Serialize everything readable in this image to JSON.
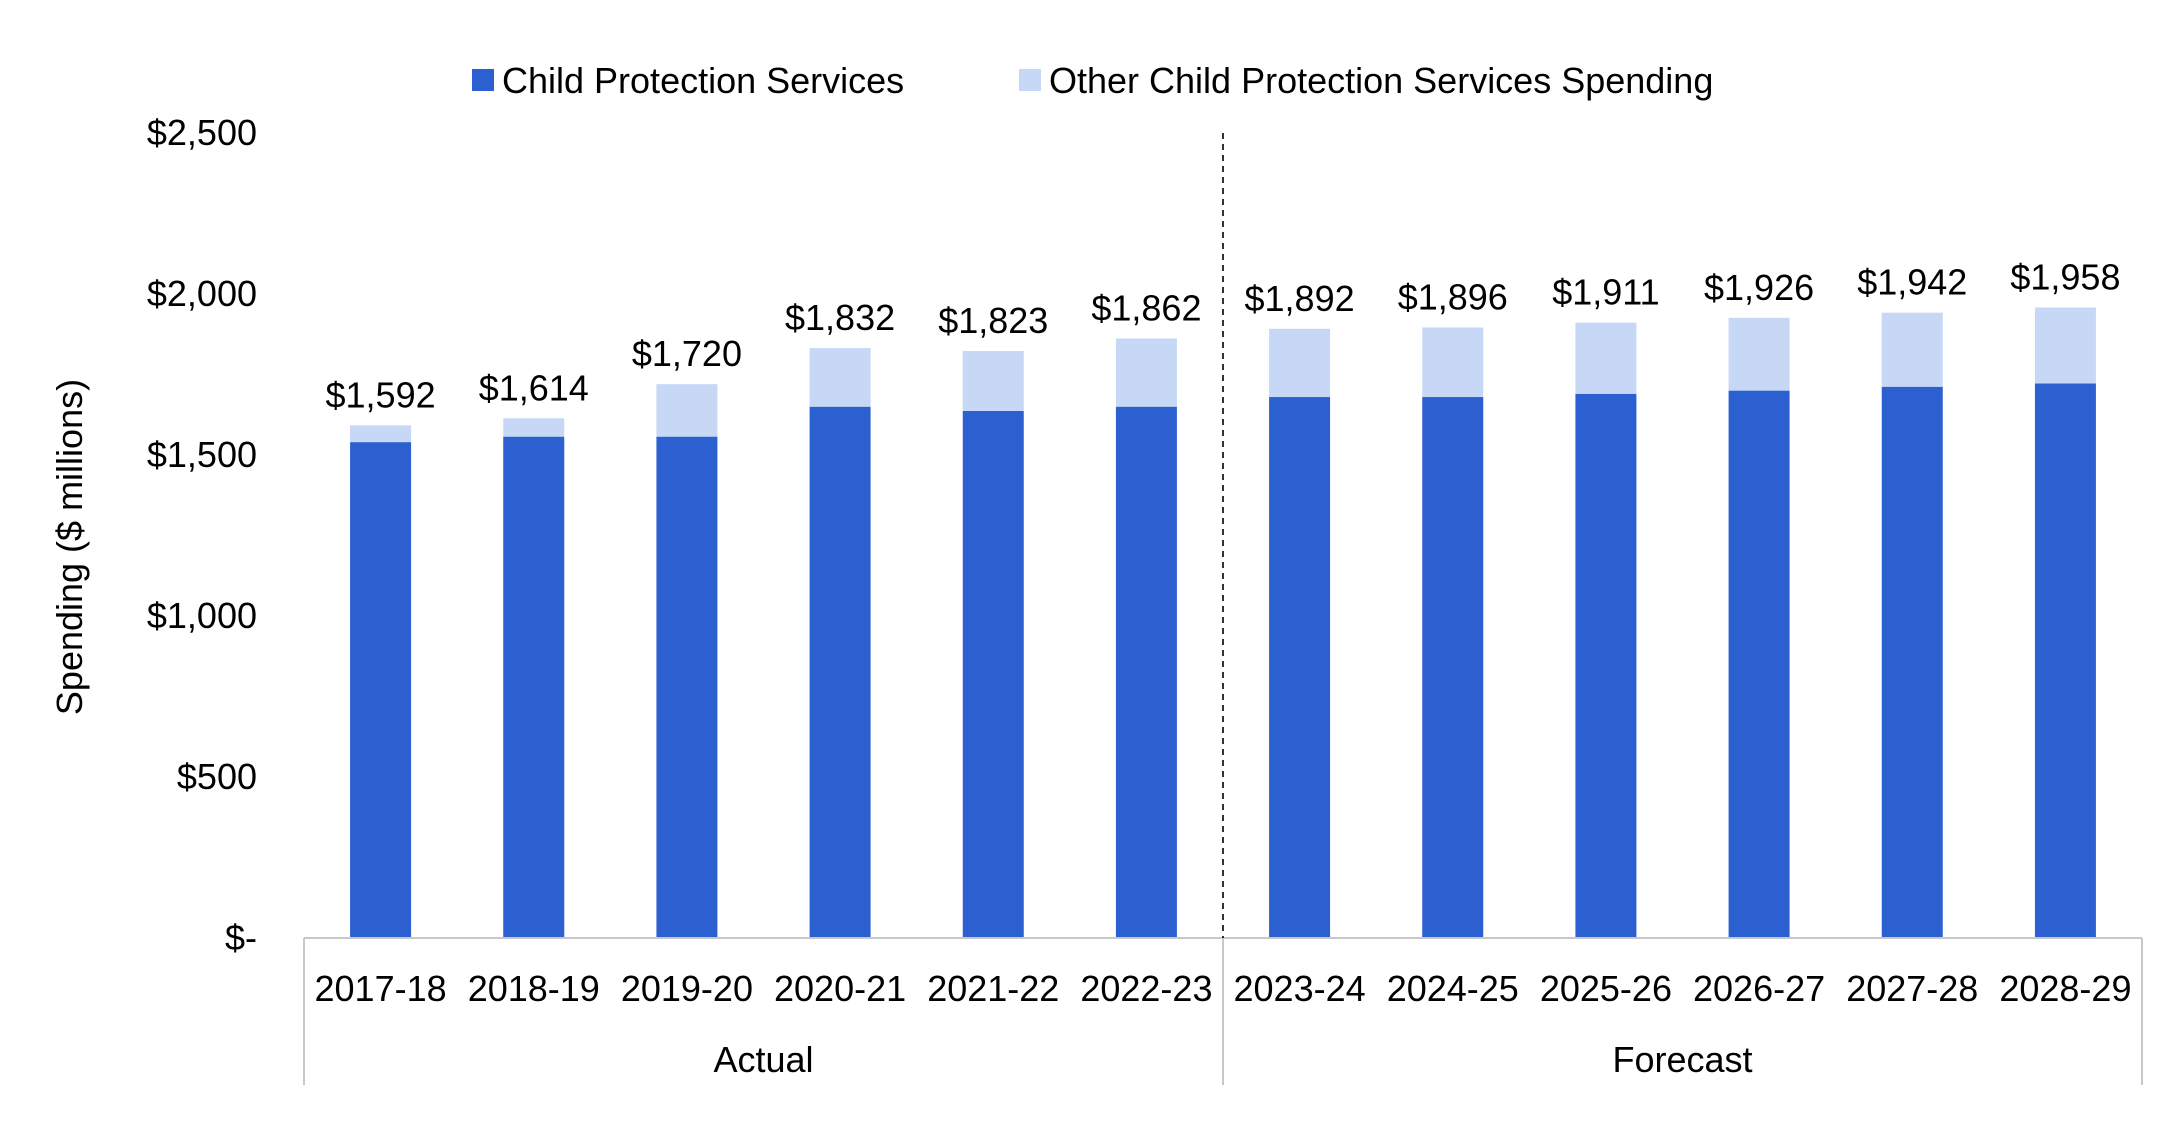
{
  "chart_data": {
    "type": "bar",
    "stacked": true,
    "title": "",
    "xlabel": "",
    "ylabel": "Spending ($ millions)",
    "ylim": [
      0,
      2500
    ],
    "y_ticks": [
      0,
      500,
      1000,
      1500,
      2000,
      2500
    ],
    "y_tick_labels": [
      "$-",
      "$500",
      "$1,000",
      "$1,500",
      "$2,000",
      "$2,500"
    ],
    "grid": false,
    "legend_position": "top-center",
    "categories": [
      "2017-18",
      "2018-19",
      "2019-20",
      "2020-21",
      "2021-22",
      "2022-23",
      "2023-24",
      "2024-25",
      "2025-26",
      "2026-27",
      "2027-28",
      "2028-29"
    ],
    "groups": [
      {
        "label": "Actual",
        "count": 6
      },
      {
        "label": "Forecast",
        "count": 6
      }
    ],
    "series": [
      {
        "name": "Child Protection Services",
        "color": "#2c5fcf",
        "values": [
          1540,
          1557,
          1557,
          1650,
          1637,
          1650,
          1680,
          1680,
          1690,
          1700,
          1712,
          1722
        ]
      },
      {
        "name": "Other Child Protection Services Spending",
        "color": "#c6d8f5",
        "values": [
          52,
          57,
          163,
          182,
          186,
          212,
          212,
          216,
          221,
          226,
          230,
          236
        ]
      }
    ],
    "totals": [
      1592,
      1614,
      1720,
      1832,
      1823,
      1862,
      1892,
      1896,
      1911,
      1926,
      1942,
      1958
    ],
    "total_labels": [
      "$1,592",
      "$1,614",
      "$1,720",
      "$1,832",
      "$1,823",
      "$1,862",
      "$1,892",
      "$1,896",
      "$1,911",
      "$1,926",
      "$1,942",
      "$1,958"
    ]
  }
}
